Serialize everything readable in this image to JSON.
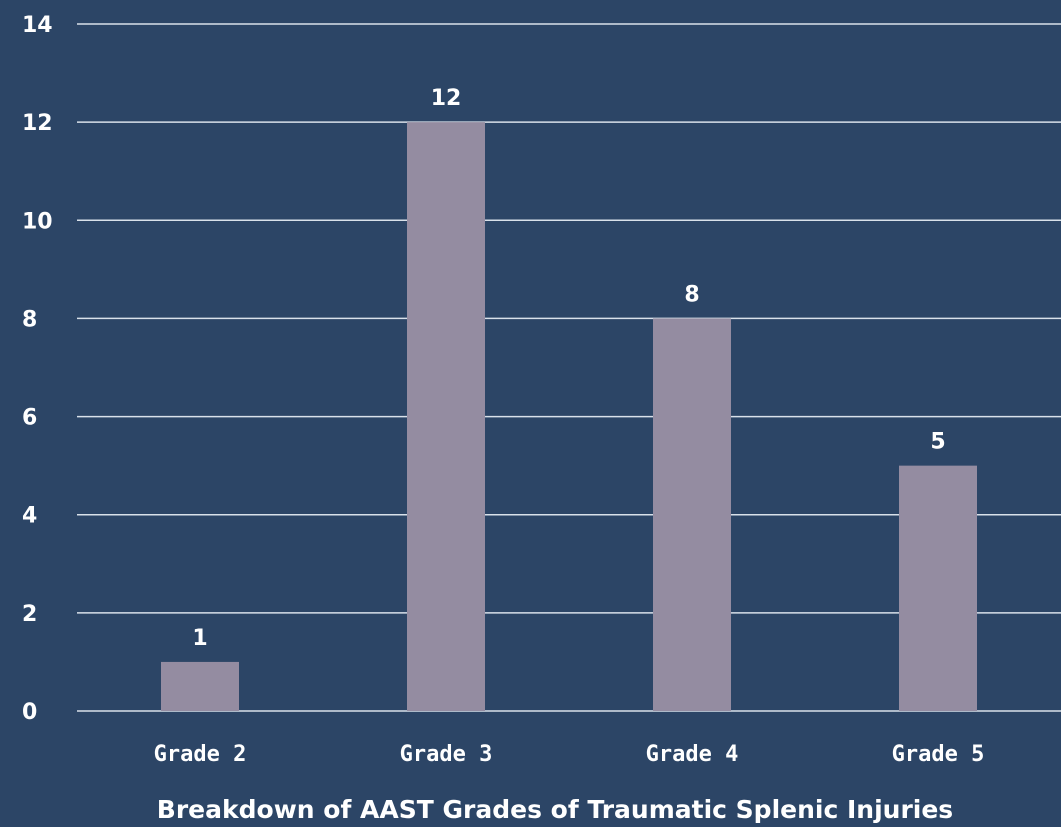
{
  "chart_data": {
    "type": "bar",
    "title": "",
    "xlabel": "Breakdown of AAST Grades of Traumatic Splenic Injuries",
    "ylabel": "",
    "categories": [
      "Grade 2",
      "Grade 3",
      "Grade 4",
      "Grade 5"
    ],
    "values": [
      1,
      12,
      8,
      5
    ],
    "ylim": [
      0,
      14
    ],
    "yticks": [
      "0",
      "2",
      "4",
      "6",
      "8",
      "10",
      "12",
      "14"
    ],
    "grid": true,
    "legend": "none",
    "data_labels": true,
    "colors": {
      "background": "#2c4566",
      "bar": "#948ca1",
      "grid": "#d9e1ea",
      "text": "#ffffff"
    }
  }
}
